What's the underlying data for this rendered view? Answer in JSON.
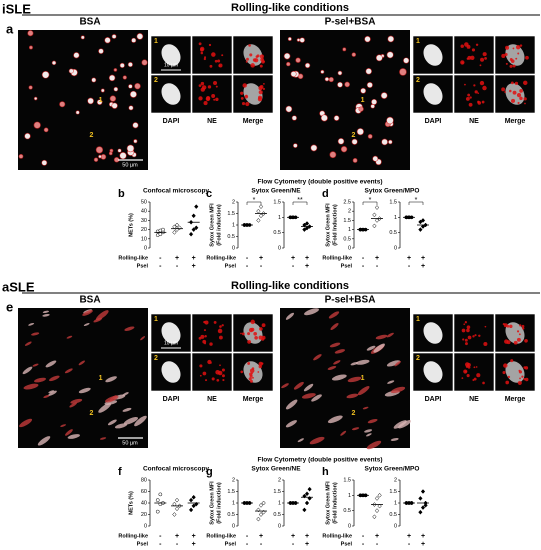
{
  "sections": [
    {
      "label": "iSLE",
      "title": "Rolling-like conditions",
      "panel": "a",
      "conditions": [
        {
          "title": "BSA",
          "markers": [
            "1",
            "2"
          ],
          "channels": [
            "DAPI",
            "NE",
            "Merge"
          ],
          "scale_bar": "50 µm",
          "inset_scale_bar": "10 µm"
        },
        {
          "title": "P-sel+BSA",
          "markers": [
            "1",
            "2"
          ],
          "channels": [
            "DAPI",
            "NE",
            "Merge"
          ]
        }
      ],
      "flow_title": "Flow Cytometry (double positive events)",
      "row_labels": [
        "Rolling-like",
        "Psel"
      ],
      "plots": [
        {
          "letter": "b",
          "title": "Confocal microscopy",
          "ylabel": [
            "NETs (%)"
          ],
          "subplots": [
            {
              "ylim": [
                0,
                50
              ],
              "yticks": [
                0,
                10,
                20,
                30,
                40,
                50
              ],
              "groups": [
                {
                  "signs": [
                    "-",
                    "-"
                  ],
                  "marker": "open-circle",
                  "values": [
                    14,
                    15,
                    17,
                    18,
                    19,
                    20
                  ],
                  "mean": 17
                },
                {
                  "signs": [
                    "+",
                    "-"
                  ],
                  "marker": "open-diamond",
                  "values": [
                    17,
                    20,
                    22,
                    23,
                    25
                  ],
                  "mean": 21
                },
                {
                  "signs": [
                    "+",
                    "+"
                  ],
                  "marker": "filled-diamond",
                  "values": [
                    15,
                    20,
                    22,
                    28,
                    35,
                    45
                  ],
                  "mean": 28
                }
              ]
            }
          ]
        },
        {
          "letter": "c",
          "title": "Sytox Green/NE",
          "ylabel": [
            "Sytox Green MFI",
            "(Fold induction)"
          ],
          "subplots": [
            {
              "ylim": [
                0,
                2
              ],
              "yticks": [
                0,
                0.5,
                1,
                1.5,
                2
              ],
              "significance": "*",
              "groups": [
                {
                  "signs": [
                    "-",
                    "-"
                  ],
                  "marker": "filled-circle",
                  "values": [
                    1,
                    1,
                    1,
                    1,
                    1
                  ],
                  "mean": 1
                },
                {
                  "signs": [
                    "+",
                    "-"
                  ],
                  "marker": "open-diamond",
                  "values": [
                    1.2,
                    1.4,
                    1.5,
                    1.6,
                    1.8
                  ],
                  "mean": 1.5
                }
              ]
            },
            {
              "ylim": [
                0,
                1.5
              ],
              "yticks": [
                0,
                0.5,
                1,
                1.5
              ],
              "significance": "**",
              "groups": [
                {
                  "signs": [
                    "+",
                    "-"
                  ],
                  "marker": "filled-circle",
                  "values": [
                    1,
                    1,
                    1,
                    1,
                    1
                  ],
                  "mean": 1
                },
                {
                  "signs": [
                    "+",
                    "+"
                  ],
                  "marker": "filled-diamond",
                  "values": [
                    0.6,
                    0.65,
                    0.7,
                    0.75,
                    0.8
                  ],
                  "mean": 0.7
                }
              ]
            }
          ]
        },
        {
          "letter": "d",
          "title": "Sytox Green/MPO",
          "ylabel": [
            "Sytox Green MFI",
            "(Fold Induction)"
          ],
          "subplots": [
            {
              "ylim": [
                0,
                2.5
              ],
              "yticks": [
                0,
                0.5,
                1,
                1.5,
                2,
                2.5
              ],
              "significance": "*",
              "groups": [
                {
                  "signs": [
                    "-",
                    "-"
                  ],
                  "marker": "filled-circle",
                  "values": [
                    1,
                    1,
                    1,
                    1,
                    1
                  ],
                  "mean": 1
                },
                {
                  "signs": [
                    "+",
                    "-"
                  ],
                  "marker": "open-diamond",
                  "values": [
                    1.2,
                    1.5,
                    1.6,
                    1.8,
                    2.2
                  ],
                  "mean": 1.6
                }
              ]
            },
            {
              "ylim": [
                0,
                1.5
              ],
              "yticks": [
                0,
                0.5,
                1,
                1.5
              ],
              "significance": "*",
              "groups": [
                {
                  "signs": [
                    "+",
                    "-"
                  ],
                  "marker": "filled-circle",
                  "values": [
                    1,
                    1,
                    1,
                    1,
                    1
                  ],
                  "mean": 1
                },
                {
                  "signs": [
                    "+",
                    "+"
                  ],
                  "marker": "filled-diamond",
                  "values": [
                    0.6,
                    0.7,
                    0.75,
                    0.85,
                    0.9
                  ],
                  "mean": 0.75
                }
              ]
            }
          ]
        }
      ]
    },
    {
      "label": "aSLE",
      "title": "Rolling-like conditions",
      "panel": "e",
      "conditions": [
        {
          "title": "BSA",
          "markers": [
            "1",
            "2"
          ],
          "channels": [
            "DAPI",
            "NE",
            "Merge"
          ],
          "scale_bar": "50 µm",
          "inset_scale_bar": "10 µm"
        },
        {
          "title": "P-sel+BSA",
          "markers": [
            "1",
            "2"
          ],
          "channels": [
            "DAPI",
            "NE",
            "Merge"
          ]
        }
      ],
      "flow_title": "Flow Cytometry (double positive events)",
      "row_labels": [
        "Rolling-like",
        "Psel"
      ],
      "plots": [
        {
          "letter": "f",
          "title": "Confocal microscopy",
          "ylabel": [
            "NETs (%)"
          ],
          "subplots": [
            {
              "ylim": [
                0,
                80
              ],
              "yticks": [
                0,
                20,
                40,
                60,
                80
              ],
              "groups": [
                {
                  "signs": [
                    "-",
                    "-"
                  ],
                  "marker": "open-circle",
                  "values": [
                    25,
                    38,
                    40,
                    45,
                    55
                  ],
                  "mean": 40
                },
                {
                  "signs": [
                    "+",
                    "-"
                  ],
                  "marker": "open-diamond",
                  "values": [
                    20,
                    30,
                    35,
                    38,
                    45
                  ],
                  "mean": 35
                },
                {
                  "signs": [
                    "+",
                    "+"
                  ],
                  "marker": "filled-diamond",
                  "values": [
                    28,
                    35,
                    38,
                    45,
                    50
                  ],
                  "mean": 40
                }
              ]
            }
          ]
        },
        {
          "letter": "g",
          "title": "Sytox Green/NE",
          "ylabel": [
            "Sytox Green MFI",
            "(Fold induction)"
          ],
          "subplots": [
            {
              "ylim": [
                0,
                2
              ],
              "yticks": [
                0,
                0.5,
                1,
                1.5,
                2
              ],
              "groups": [
                {
                  "signs": [
                    "-",
                    "-"
                  ],
                  "marker": "filled-circle",
                  "values": [
                    1,
                    1,
                    1,
                    1,
                    1,
                    1
                  ],
                  "mean": 1
                },
                {
                  "signs": [
                    "+",
                    "-"
                  ],
                  "marker": "open-diamond",
                  "values": [
                    0.3,
                    0.5,
                    0.6,
                    0.7,
                    0.9,
                    1
                  ],
                  "mean": 0.65
                }
              ]
            },
            {
              "ylim": [
                0,
                2
              ],
              "yticks": [
                0,
                0.5,
                1,
                1.5,
                2
              ],
              "groups": [
                {
                  "signs": [
                    "+",
                    "-"
                  ],
                  "marker": "filled-circle",
                  "values": [
                    1,
                    1,
                    1,
                    1,
                    1,
                    1
                  ],
                  "mean": 1
                },
                {
                  "signs": [
                    "+",
                    "+"
                  ],
                  "marker": "filled-diamond",
                  "values": [
                    0.7,
                    1,
                    1.2,
                    1.3,
                    1.4,
                    1.6
                  ],
                  "mean": 1.25
                }
              ]
            }
          ]
        },
        {
          "letter": "h",
          "title": "Sytox Green/MPO",
          "ylabel": [
            "Sytox Green MFI",
            "(Fold Induction)"
          ],
          "subplots": [
            {
              "ylim": [
                0,
                1.5
              ],
              "yticks": [
                0,
                0.5,
                1,
                1.5
              ],
              "groups": [
                {
                  "signs": [
                    "-",
                    "-"
                  ],
                  "marker": "filled-circle",
                  "values": [
                    1,
                    1,
                    1,
                    1,
                    1,
                    1
                  ],
                  "mean": 1
                },
                {
                  "signs": [
                    "+",
                    "-"
                  ],
                  "marker": "open-diamond",
                  "values": [
                    0.3,
                    0.5,
                    0.65,
                    0.7,
                    0.9,
                    1
                  ],
                  "mean": 0.7
                }
              ]
            },
            {
              "ylim": [
                0,
                2
              ],
              "yticks": [
                0,
                0.5,
                1,
                1.5,
                2
              ],
              "groups": [
                {
                  "signs": [
                    "+",
                    "-"
                  ],
                  "marker": "filled-circle",
                  "values": [
                    1,
                    1,
                    1,
                    1,
                    1,
                    1
                  ],
                  "mean": 1
                },
                {
                  "signs": [
                    "+",
                    "+"
                  ],
                  "marker": "filled-diamond",
                  "values": [
                    0.6,
                    0.8,
                    0.9,
                    1.2,
                    1.5,
                    1
                  ],
                  "mean": 1
                }
              ]
            }
          ]
        }
      ]
    }
  ]
}
